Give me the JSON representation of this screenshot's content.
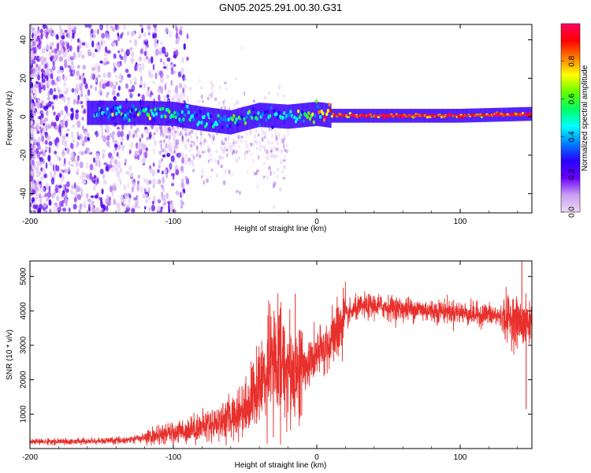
{
  "title": "GN05.2025.291.00.30.G31",
  "chart_data": [
    {
      "type": "heatmap",
      "name": "spectrogram",
      "xlabel": "Height of straight line (km)",
      "ylabel": "Frequency (Hz)",
      "xlim": [
        -200,
        150
      ],
      "ylim": [
        -50,
        48
      ],
      "xticks": [
        -200,
        -100,
        0,
        100
      ],
      "yticks": [
        -40,
        -20,
        0,
        20,
        40
      ],
      "colorbar": {
        "label": "Normalized spectral amplitude",
        "range": [
          0,
          1
        ],
        "ticks": [
          0.0,
          0.2,
          0.4,
          0.6,
          0.8
        ],
        "tick_labels": [
          "0.0",
          "0.2",
          "0.4",
          "0.6",
          "0.8"
        ],
        "colors": [
          "#efd8f7",
          "#c9a0ef",
          "#6a00ff",
          "#2600ff",
          "#0080ff",
          "#00ffff",
          "#00ff66",
          "#66ff00",
          "#ffff00",
          "#ff8000",
          "#ff0000",
          "#ff0066"
        ]
      },
      "description_ridge": [
        {
          "x": -150,
          "y": 2.0,
          "amp": 0.35
        },
        {
          "x": -120,
          "y": 2.0,
          "amp": 0.45
        },
        {
          "x": -100,
          "y": 1.5,
          "amp": 0.45
        },
        {
          "x": -80,
          "y": -1.0,
          "amp": 0.4
        },
        {
          "x": -60,
          "y": -3.0,
          "amp": 0.45
        },
        {
          "x": -40,
          "y": 1.0,
          "amp": 0.4
        },
        {
          "x": -20,
          "y": 0.0,
          "amp": 0.5
        },
        {
          "x": 0,
          "y": 1.5,
          "amp": 0.6
        },
        {
          "x": 10,
          "y": 0.5,
          "amp": 0.9
        },
        {
          "x": 50,
          "y": 0.5,
          "amp": 0.9
        },
        {
          "x": 100,
          "y": 0.5,
          "amp": 0.85
        },
        {
          "x": 150,
          "y": 1.5,
          "amp": 0.9
        }
      ]
    },
    {
      "type": "line",
      "name": "snr",
      "xlabel": "Height of straight line (km)",
      "ylabel": "SNR (10 * v/v)",
      "xlim": [
        -200,
        150
      ],
      "ylim": [
        0,
        5450
      ],
      "xticks": [
        -200,
        -100,
        0,
        100
      ],
      "yticks": [
        1000,
        2000,
        3000,
        4000,
        5000
      ],
      "color": "#e8302c",
      "x": [
        -200,
        -180,
        -160,
        -140,
        -130,
        -120,
        -110,
        -100,
        -90,
        -80,
        -70,
        -60,
        -50,
        -45,
        -40,
        -35,
        -30,
        -25,
        -20,
        -15,
        -10,
        -5,
        0,
        5,
        10,
        15,
        20,
        25,
        30,
        40,
        50,
        60,
        70,
        80,
        90,
        100,
        110,
        120,
        130,
        135,
        140,
        145,
        150
      ],
      "y": [
        200,
        200,
        210,
        230,
        260,
        320,
        380,
        450,
        550,
        650,
        750,
        900,
        1200,
        1500,
        1800,
        2200,
        2500,
        2600,
        2300,
        2200,
        2300,
        2500,
        2700,
        2900,
        3100,
        3500,
        3800,
        4000,
        4100,
        4150,
        4100,
        4050,
        4050,
        4000,
        4000,
        3950,
        3900,
        3900,
        3800,
        3800,
        3700,
        3600,
        3700
      ],
      "spike_markers": [
        {
          "x": -15,
          "y": 4500
        },
        {
          "x": 143,
          "y": 5450
        },
        {
          "x": 146,
          "y": 1150
        }
      ]
    }
  ]
}
